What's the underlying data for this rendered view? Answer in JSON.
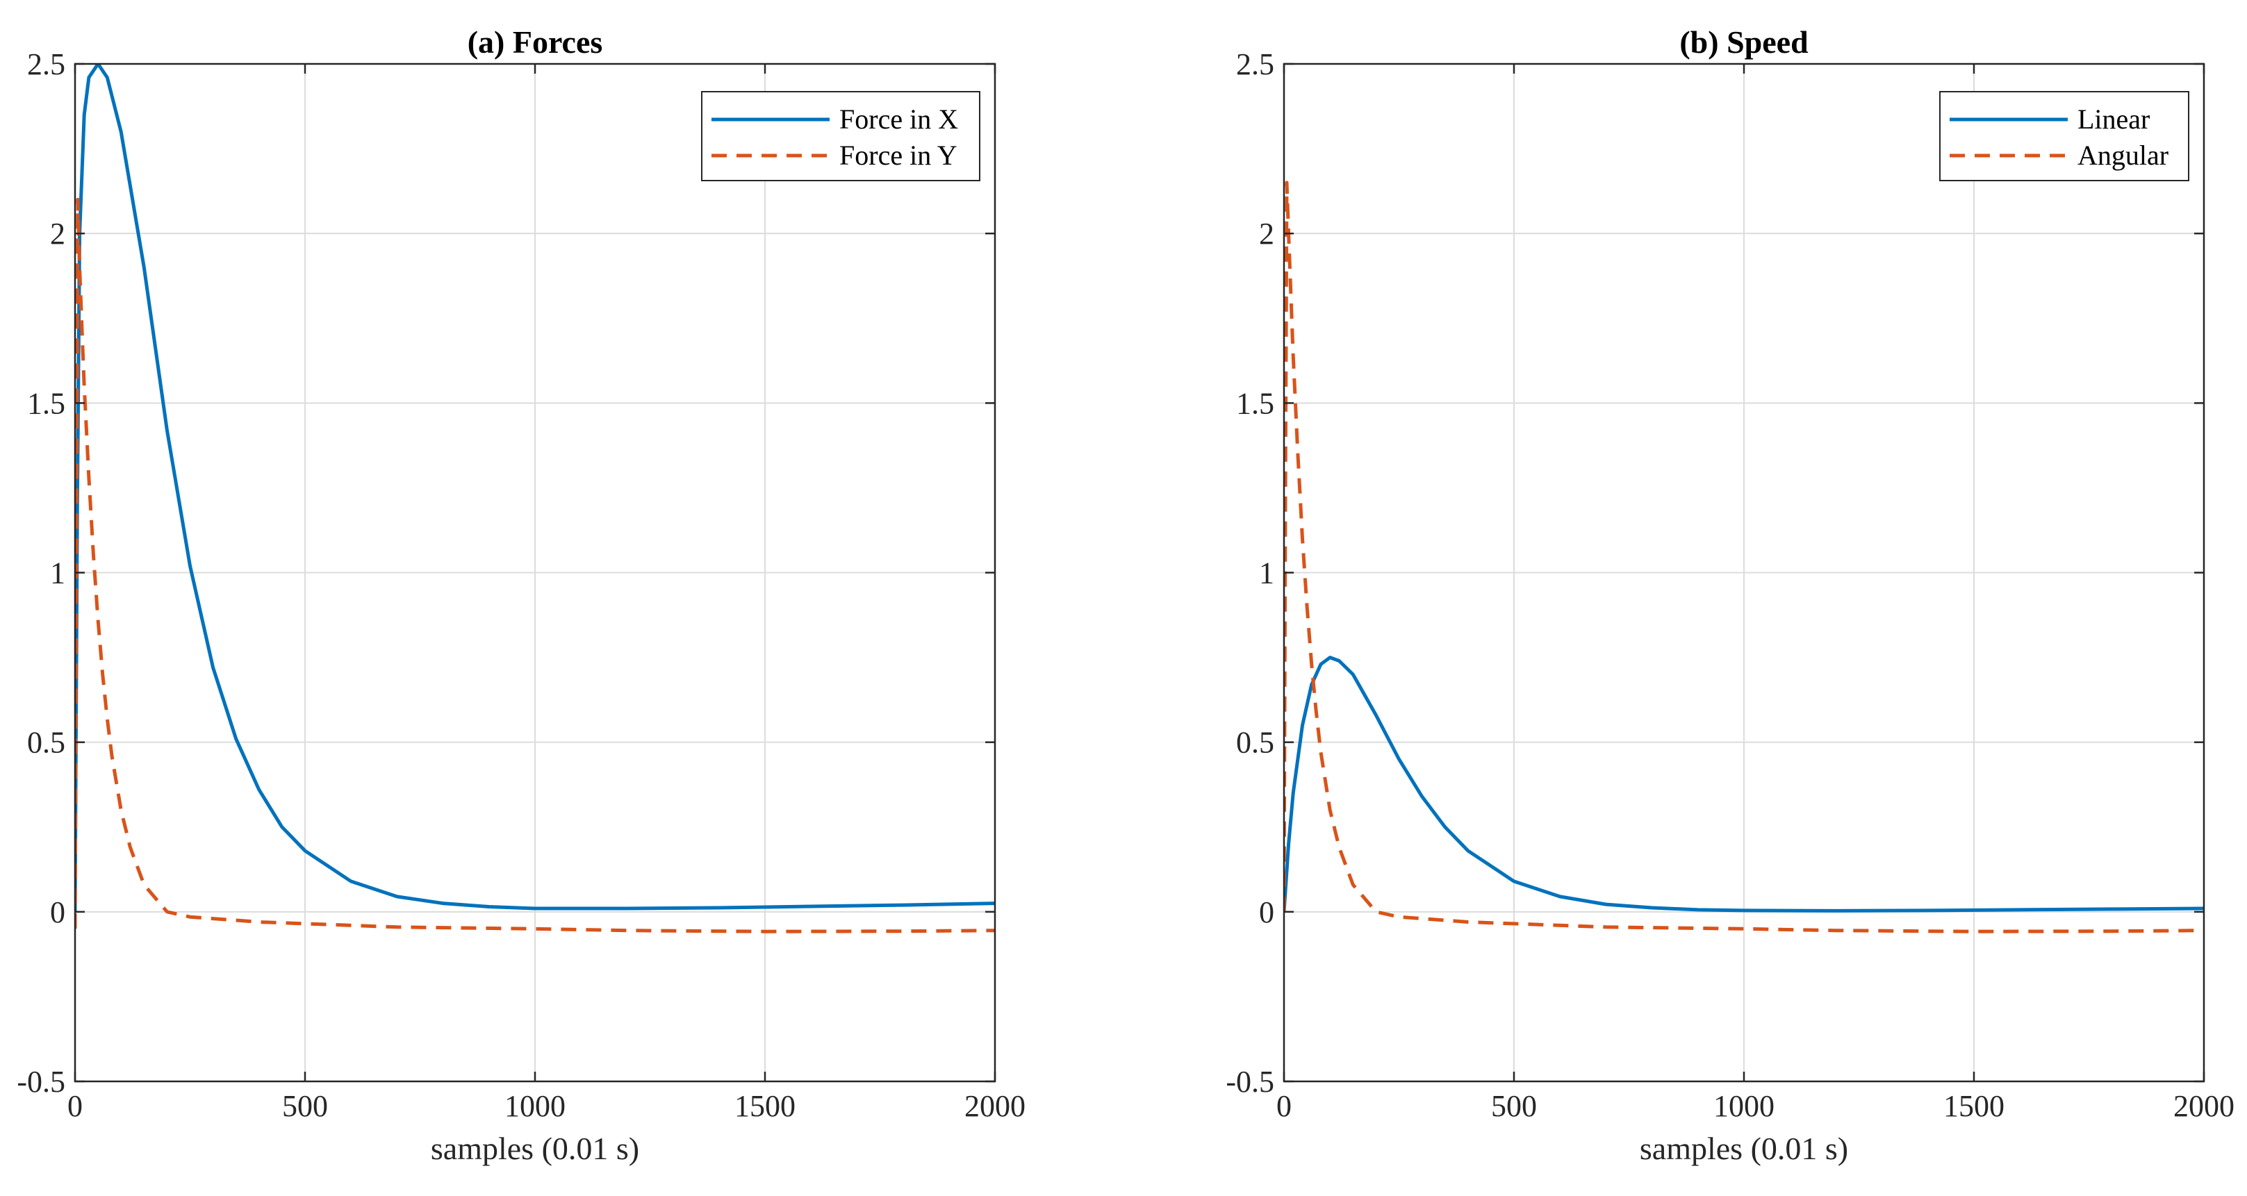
{
  "chart_data": [
    {
      "type": "line",
      "title": "(a) Forces",
      "xlabel": "samples (0.01 s)",
      "ylabel": "",
      "xlim": [
        0,
        2000
      ],
      "ylim": [
        -0.5,
        2.5
      ],
      "xticks": [
        0,
        500,
        1000,
        1500,
        2000
      ],
      "yticks": [
        -0.5,
        0,
        0.5,
        1,
        1.5,
        2,
        2.5
      ],
      "xtick_labels": [
        "0",
        "500",
        "1000",
        "1500",
        "2000"
      ],
      "ytick_labels": [
        "-0.5",
        "0",
        "0.5",
        "1",
        "1.5",
        "2",
        "2.5"
      ],
      "grid": true,
      "legend_position": "top-right",
      "series": [
        {
          "name": "Force in X",
          "color": "#0072BD",
          "style": "solid",
          "x": [
            0,
            5,
            10,
            20,
            30,
            50,
            70,
            100,
            150,
            200,
            250,
            300,
            350,
            400,
            450,
            500,
            600,
            700,
            800,
            900,
            1000,
            1200,
            1400,
            1600,
            1800,
            2000
          ],
          "y": [
            0,
            1.2,
            2.0,
            2.35,
            2.46,
            2.5,
            2.46,
            2.3,
            1.9,
            1.42,
            1.02,
            0.72,
            0.51,
            0.36,
            0.25,
            0.18,
            0.09,
            0.045,
            0.025,
            0.015,
            0.01,
            0.01,
            0.012,
            0.016,
            0.02,
            0.025
          ]
        },
        {
          "name": "Force in Y",
          "color": "#D95319",
          "style": "dashed",
          "x": [
            0,
            3,
            6,
            10,
            15,
            20,
            30,
            40,
            50,
            60,
            70,
            80,
            100,
            120,
            150,
            200,
            250,
            300,
            400,
            500,
            700,
            1000,
            1200,
            1500,
            1800,
            2000
          ],
          "y": [
            -0.05,
            1.0,
            2.1,
            1.9,
            1.72,
            1.55,
            1.28,
            1.05,
            0.86,
            0.7,
            0.57,
            0.46,
            0.3,
            0.19,
            0.08,
            0.0,
            -0.015,
            -0.02,
            -0.03,
            -0.035,
            -0.045,
            -0.05,
            -0.055,
            -0.058,
            -0.057,
            -0.055
          ]
        }
      ]
    },
    {
      "type": "line",
      "title": "(b) Speed",
      "xlabel": "samples (0.01 s)",
      "ylabel": "",
      "xlim": [
        0,
        2000
      ],
      "ylim": [
        -0.5,
        2.5
      ],
      "xticks": [
        0,
        500,
        1000,
        1500,
        2000
      ],
      "yticks": [
        -0.5,
        0,
        0.5,
        1,
        1.5,
        2,
        2.5
      ],
      "xtick_labels": [
        "0",
        "500",
        "1000",
        "1500",
        "2000"
      ],
      "ytick_labels": [
        "-0.5",
        "0",
        "0.5",
        "1",
        "1.5",
        "2",
        "2.5"
      ],
      "grid": true,
      "legend_position": "top-right",
      "series": [
        {
          "name": "Linear",
          "color": "#0072BD",
          "style": "solid",
          "x": [
            0,
            10,
            20,
            40,
            60,
            80,
            100,
            120,
            150,
            200,
            250,
            300,
            350,
            400,
            500,
            600,
            700,
            800,
            900,
            1000,
            1200,
            1400,
            1600,
            1800,
            2000
          ],
          "y": [
            0,
            0.2,
            0.35,
            0.55,
            0.67,
            0.73,
            0.75,
            0.74,
            0.7,
            0.58,
            0.45,
            0.34,
            0.25,
            0.18,
            0.09,
            0.045,
            0.022,
            0.012,
            0.006,
            0.004,
            0.003,
            0.004,
            0.006,
            0.008,
            0.01
          ]
        },
        {
          "name": "Angular",
          "color": "#D95319",
          "style": "dashed",
          "x": [
            0,
            3,
            6,
            10,
            15,
            20,
            30,
            40,
            50,
            60,
            70,
            80,
            100,
            120,
            150,
            200,
            250,
            300,
            400,
            500,
            700,
            1000,
            1200,
            1500,
            1800,
            2000
          ],
          "y": [
            0,
            1.2,
            2.15,
            2.0,
            1.82,
            1.64,
            1.35,
            1.1,
            0.9,
            0.73,
            0.59,
            0.47,
            0.3,
            0.19,
            0.08,
            0.0,
            -0.015,
            -0.02,
            -0.03,
            -0.035,
            -0.045,
            -0.05,
            -0.055,
            -0.058,
            -0.057,
            -0.055
          ]
        }
      ]
    }
  ]
}
